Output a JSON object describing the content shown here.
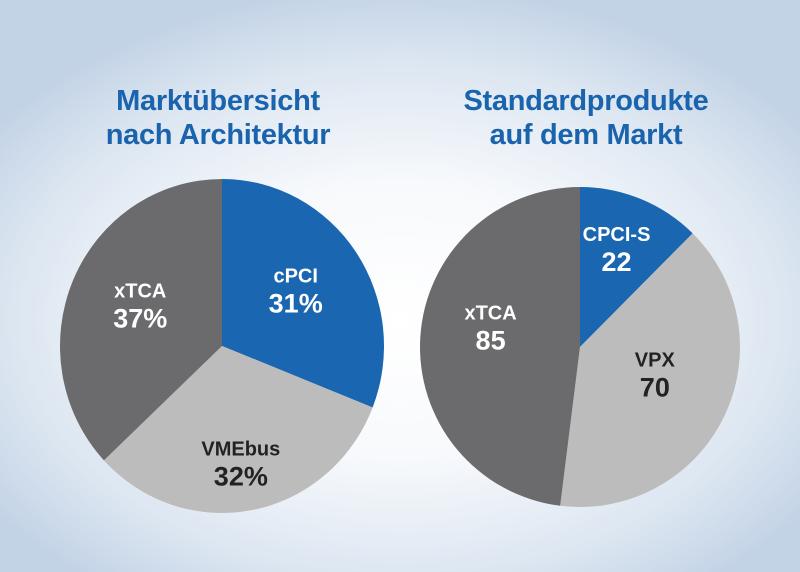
{
  "chart_data": [
    {
      "type": "pie",
      "title_lines": [
        "Marktübersicht",
        "nach Architektur"
      ],
      "slices": [
        {
          "label": "cPCI",
          "display": "31%",
          "value": 31,
          "color": "#1a66b0",
          "text_color": "#ffffff"
        },
        {
          "label": "VMEbus",
          "display": "32%",
          "value": 32,
          "color": "#bcbcbc",
          "text_color": "#222222"
        },
        {
          "label": "xTCA",
          "display": "37%",
          "value": 37,
          "color": "#6b6b6d",
          "text_color": "#ffffff"
        }
      ]
    },
    {
      "type": "pie",
      "title_lines": [
        "Standardprodukte",
        "auf dem Markt"
      ],
      "slices": [
        {
          "label": "CPCI-S",
          "display": "22",
          "value": 22,
          "color": "#1a66b0",
          "text_color": "#ffffff"
        },
        {
          "label": "VPX",
          "display": "70",
          "value": 70,
          "color": "#bcbcbc",
          "text_color": "#222222"
        },
        {
          "label": "xTCA",
          "display": "85",
          "value": 85,
          "color": "#6b6b6d",
          "text_color": "#ffffff"
        }
      ]
    }
  ]
}
